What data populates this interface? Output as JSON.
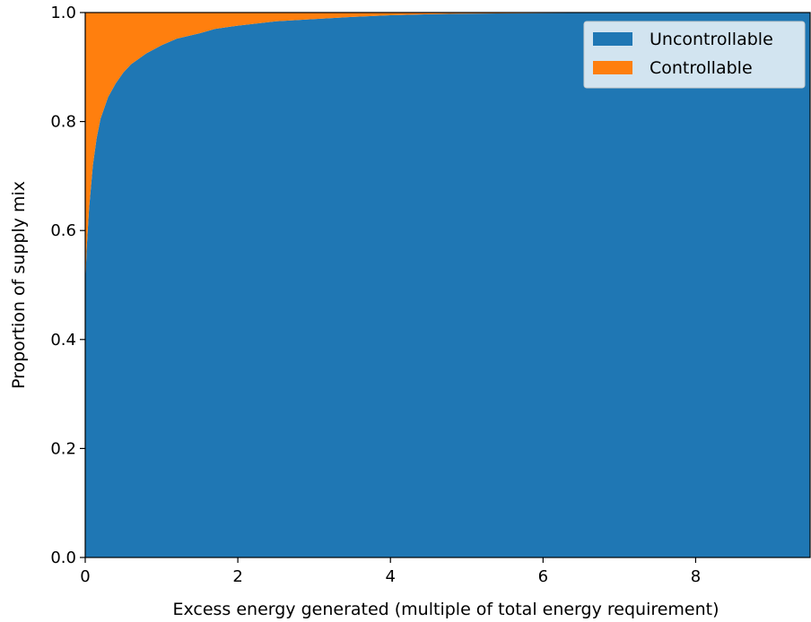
{
  "chart_data": {
    "type": "area",
    "stacked": true,
    "xlabel": "Excess energy generated (multiple of total energy requirement)",
    "ylabel": "Proportion of supply mix",
    "xlim": [
      0,
      9.5
    ],
    "ylim": [
      0.0,
      1.0
    ],
    "xticks": [
      "0",
      "2",
      "4",
      "6",
      "8"
    ],
    "yticks": [
      "0.0",
      "0.2",
      "0.4",
      "0.6",
      "0.8",
      "1.0"
    ],
    "grid": false,
    "legend_position": "top-right",
    "x": [
      0,
      0.02,
      0.05,
      0.1,
      0.15,
      0.2,
      0.3,
      0.4,
      0.5,
      0.6,
      0.8,
      1.0,
      1.2,
      1.5,
      1.7,
      2.0,
      2.5,
      3.0,
      3.5,
      4.0,
      4.5,
      5.0,
      6.0,
      7.0,
      8.0,
      9.0,
      9.5
    ],
    "series": [
      {
        "name": "Uncontrollable",
        "color": "#1f77b4",
        "values": [
          0.5,
          0.57,
          0.64,
          0.72,
          0.77,
          0.805,
          0.845,
          0.87,
          0.89,
          0.905,
          0.925,
          0.94,
          0.952,
          0.962,
          0.97,
          0.976,
          0.984,
          0.988,
          0.992,
          0.995,
          0.997,
          0.998,
          0.999,
          0.9995,
          1.0,
          1.0,
          1.0
        ]
      },
      {
        "name": "Controllable",
        "color": "#ff7f0e",
        "values": [
          0.5,
          0.43,
          0.36,
          0.28,
          0.23,
          0.195,
          0.155,
          0.13,
          0.11,
          0.095,
          0.075,
          0.06,
          0.048,
          0.038,
          0.03,
          0.024,
          0.016,
          0.012,
          0.008,
          0.005,
          0.003,
          0.002,
          0.001,
          0.0005,
          0.0,
          0.0,
          0.0
        ]
      }
    ]
  }
}
